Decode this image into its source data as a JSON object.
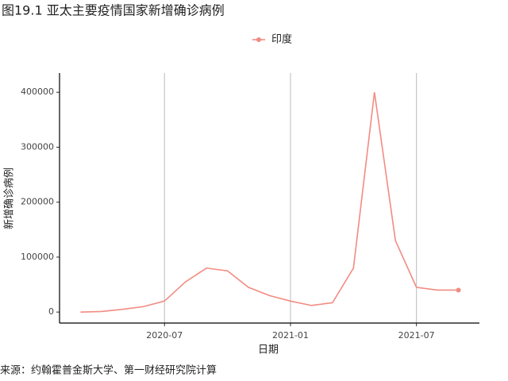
{
  "chart_data": {
    "type": "line",
    "title": "图19.1 亚太主要疫情国家新增确诊病例",
    "x_label": "日期",
    "y_label": "新增确诊病例",
    "source": "来源：约翰霍普金斯大学、第一财经研究院计算",
    "x": [
      "2020-03",
      "2020-04",
      "2020-05",
      "2020-06",
      "2020-07",
      "2020-08",
      "2020-09",
      "2020-10",
      "2020-11",
      "2020-12",
      "2021-01",
      "2021-02",
      "2021-03",
      "2021-04",
      "2021-05",
      "2021-06",
      "2021-07",
      "2021-08",
      "2021-09"
    ],
    "series": [
      {
        "name": "印度",
        "color": "#f28b82",
        "values": [
          0,
          1000,
          5000,
          10000,
          20000,
          55000,
          80000,
          75000,
          45000,
          30000,
          20000,
          12000,
          17000,
          80000,
          400000,
          130000,
          45000,
          40000,
          40000
        ]
      }
    ],
    "xlim": [
      "2020-02",
      "2021-10"
    ],
    "xticks": [
      "2020-07",
      "2021-01",
      "2021-07"
    ],
    "ylim": [
      -20000,
      435000
    ],
    "yticks": [
      0,
      100000,
      200000,
      300000,
      400000
    ],
    "grid": "x",
    "legend": "top"
  }
}
